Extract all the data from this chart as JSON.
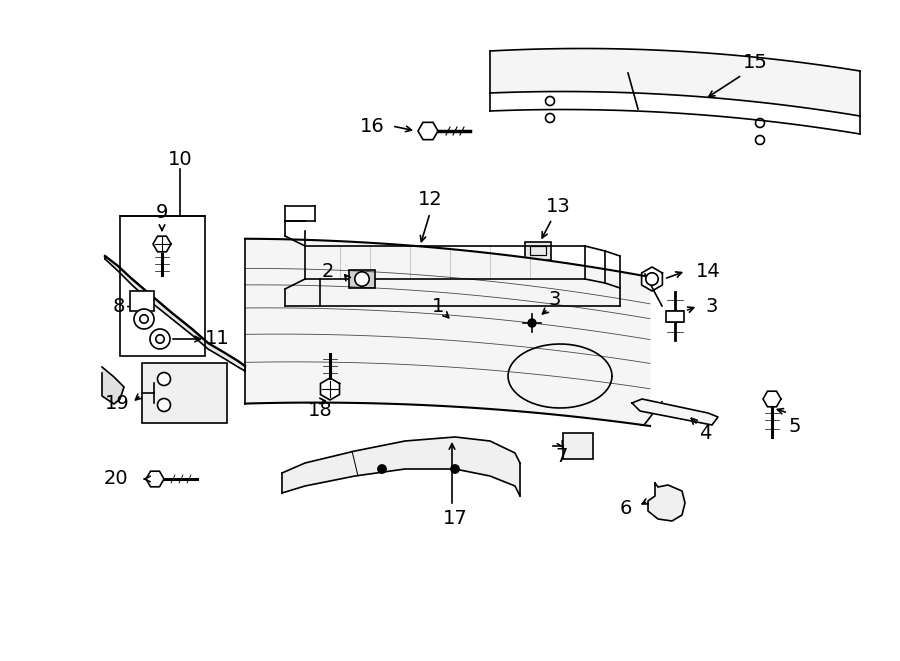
{
  "bg_color": "#ffffff",
  "line_color": "#000000",
  "fig_width": 9.0,
  "fig_height": 6.61,
  "dpi": 100,
  "font_size": 14,
  "lw": 1.2
}
